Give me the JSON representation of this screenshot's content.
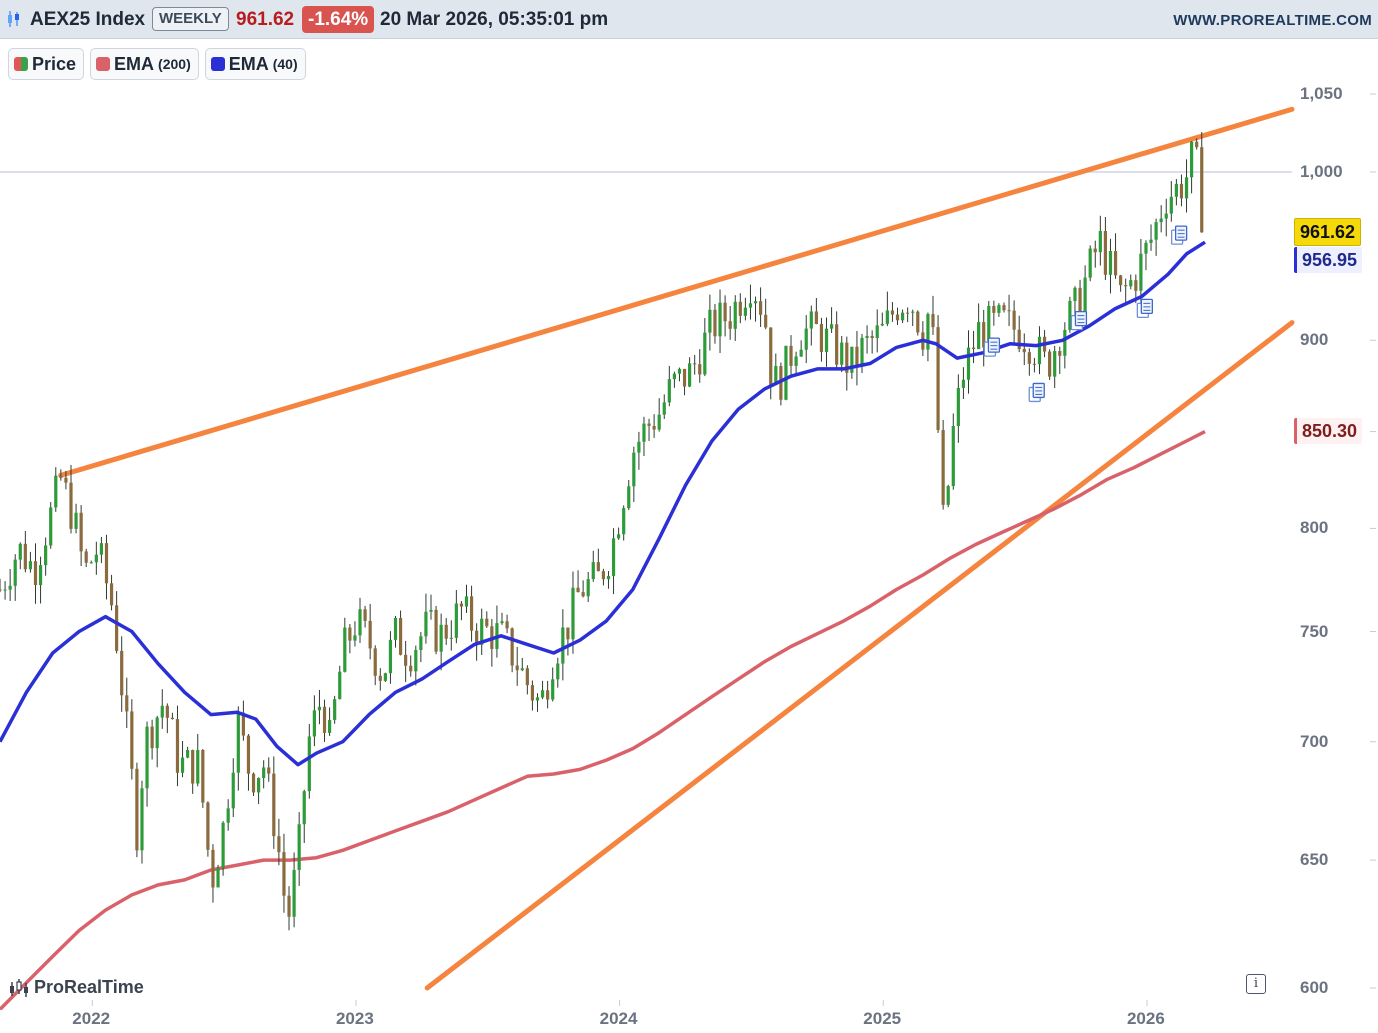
{
  "header": {
    "symbol": "AEX25 Index",
    "period": "WEEKLY",
    "last_price": "961.62",
    "change": "-1.64%",
    "datetime": "20 Mar 2026, 05:35:01 pm",
    "site": "WWW.PROREALTIME.COM",
    "colors": {
      "last": "#b91c1c",
      "change_bg": "#d9534f"
    }
  },
  "legend": {
    "price": {
      "label": "Price"
    },
    "ema200": {
      "label": "EMA",
      "param": "(200)",
      "color": "#d9626a"
    },
    "ema40": {
      "label": "EMA",
      "param": "(40)",
      "color": "#2b2fd6"
    }
  },
  "price_tags": {
    "last": {
      "text": "961.62",
      "bg": "#f5d90a",
      "fg": "#111111"
    },
    "ema40": {
      "text": "956.95",
      "bg": "#eef0ff",
      "fg": "#1f2a8c",
      "border": "#2b2fd6"
    },
    "ema200": {
      "text": "850.30",
      "bg": "#fdf1f2",
      "fg": "#7f1d1d",
      "border": "#d9626a"
    }
  },
  "brand": "ProRealTime",
  "info_icon": "i",
  "chart_data": {
    "type": "candlestick",
    "scale": "log",
    "ylim": [
      600,
      1050
    ],
    "y_ticks": [
      "1,050",
      "1,000",
      "900",
      "850",
      "800",
      "750",
      "700",
      "650",
      "600"
    ],
    "y_tick_values": [
      1050,
      1000,
      900,
      850,
      800,
      750,
      700,
      650,
      600
    ],
    "x_ticks": [
      "2022",
      "2023",
      "2024",
      "2025",
      "2026"
    ],
    "x_tick_years": [
      2022,
      2023,
      2024,
      2025,
      2026
    ],
    "x_range": [
      2021.65,
      2026.55
    ],
    "last_week": 2026.22,
    "colors": {
      "up": "#2e9b3a",
      "down": "#8b6b3d",
      "wick": "#2f3b2f",
      "trendline": "#f5843f",
      "hline": "#cfd6e6"
    },
    "horizontal_line": 1000,
    "trendlines": [
      {
        "name": "upper",
        "from": [
          2021.88,
          827
        ],
        "to": [
          2026.55,
          1040
        ]
      },
      {
        "name": "lower",
        "from": [
          2023.27,
          600
        ],
        "to": [
          2026.55,
          910
        ]
      }
    ],
    "price_path": [
      [
        2021.65,
        770
      ],
      [
        2021.72,
        790
      ],
      [
        2021.78,
        780
      ],
      [
        2021.85,
        810
      ],
      [
        2021.88,
        825
      ],
      [
        2021.93,
        805
      ],
      [
        2021.97,
        778
      ],
      [
        2022.02,
        790
      ],
      [
        2022.08,
        760
      ],
      [
        2022.13,
        705
      ],
      [
        2022.17,
        662
      ],
      [
        2022.2,
        700
      ],
      [
        2022.27,
        718
      ],
      [
        2022.33,
        690
      ],
      [
        2022.4,
        690
      ],
      [
        2022.43,
        665
      ],
      [
        2022.45,
        640
      ],
      [
        2022.5,
        665
      ],
      [
        2022.55,
        710
      ],
      [
        2022.6,
        685
      ],
      [
        2022.65,
        690
      ],
      [
        2022.7,
        660
      ],
      [
        2022.74,
        625
      ],
      [
        2022.78,
        650
      ],
      [
        2022.82,
        700
      ],
      [
        2022.87,
        720
      ],
      [
        2022.9,
        700
      ],
      [
        2022.95,
        740
      ],
      [
        2023.0,
        755
      ],
      [
        2023.05,
        745
      ],
      [
        2023.1,
        730
      ],
      [
        2023.15,
        748
      ],
      [
        2023.2,
        740
      ],
      [
        2023.27,
        752
      ],
      [
        2023.32,
        748
      ],
      [
        2023.4,
        760
      ],
      [
        2023.45,
        752
      ],
      [
        2023.55,
        748
      ],
      [
        2023.6,
        738
      ],
      [
        2023.65,
        726
      ],
      [
        2023.7,
        716
      ],
      [
        2023.75,
        740
      ],
      [
        2023.8,
        752
      ],
      [
        2023.85,
        770
      ],
      [
        2023.92,
        775
      ],
      [
        2023.97,
        790
      ],
      [
        2024.05,
        840
      ],
      [
        2024.1,
        852
      ],
      [
        2024.15,
        860
      ],
      [
        2024.2,
        875
      ],
      [
        2024.27,
        882
      ],
      [
        2024.35,
        908
      ],
      [
        2024.42,
        915
      ],
      [
        2024.5,
        935
      ],
      [
        2024.55,
        915
      ],
      [
        2024.58,
        875
      ],
      [
        2024.62,
        880
      ],
      [
        2024.68,
        905
      ],
      [
        2024.75,
        905
      ],
      [
        2024.82,
        895
      ],
      [
        2024.88,
        885
      ],
      [
        2024.92,
        895
      ],
      [
        2025.0,
        905
      ],
      [
        2025.05,
        920
      ],
      [
        2025.1,
        925
      ],
      [
        2025.15,
        905
      ],
      [
        2025.18,
        920
      ],
      [
        2025.2,
        870
      ],
      [
        2025.23,
        795
      ],
      [
        2025.26,
        845
      ],
      [
        2025.3,
        880
      ],
      [
        2025.36,
        905
      ],
      [
        2025.45,
        910
      ],
      [
        2025.52,
        905
      ],
      [
        2025.58,
        895
      ],
      [
        2025.62,
        885
      ],
      [
        2025.68,
        908
      ],
      [
        2025.72,
        915
      ],
      [
        2025.78,
        940
      ],
      [
        2025.82,
        958
      ],
      [
        2025.85,
        945
      ],
      [
        2025.9,
        925
      ],
      [
        2025.95,
        935
      ],
      [
        2026.02,
        960
      ],
      [
        2026.07,
        985
      ],
      [
        2026.12,
        990
      ],
      [
        2026.16,
        1000
      ],
      [
        2026.18,
        1015
      ],
      [
        2026.2,
        985
      ],
      [
        2026.22,
        962
      ]
    ],
    "ema40_path": [
      [
        2021.65,
        700
      ],
      [
        2021.75,
        722
      ],
      [
        2021.85,
        740
      ],
      [
        2021.95,
        750
      ],
      [
        2022.05,
        757
      ],
      [
        2022.15,
        750
      ],
      [
        2022.25,
        735
      ],
      [
        2022.35,
        722
      ],
      [
        2022.45,
        712
      ],
      [
        2022.55,
        713
      ],
      [
        2022.62,
        710
      ],
      [
        2022.7,
        698
      ],
      [
        2022.78,
        690
      ],
      [
        2022.85,
        695
      ],
      [
        2022.95,
        700
      ],
      [
        2023.05,
        712
      ],
      [
        2023.15,
        722
      ],
      [
        2023.25,
        728
      ],
      [
        2023.35,
        736
      ],
      [
        2023.45,
        744
      ],
      [
        2023.55,
        748
      ],
      [
        2023.65,
        744
      ],
      [
        2023.75,
        740
      ],
      [
        2023.85,
        746
      ],
      [
        2023.95,
        755
      ],
      [
        2024.05,
        770
      ],
      [
        2024.15,
        795
      ],
      [
        2024.25,
        822
      ],
      [
        2024.35,
        845
      ],
      [
        2024.45,
        862
      ],
      [
        2024.55,
        873
      ],
      [
        2024.65,
        880
      ],
      [
        2024.75,
        884
      ],
      [
        2024.85,
        884
      ],
      [
        2024.95,
        887
      ],
      [
        2025.05,
        896
      ],
      [
        2025.15,
        900
      ],
      [
        2025.2,
        898
      ],
      [
        2025.28,
        890
      ],
      [
        2025.38,
        893
      ],
      [
        2025.48,
        898
      ],
      [
        2025.58,
        897
      ],
      [
        2025.68,
        900
      ],
      [
        2025.78,
        908
      ],
      [
        2025.88,
        918
      ],
      [
        2025.98,
        925
      ],
      [
        2026.08,
        938
      ],
      [
        2026.15,
        950
      ],
      [
        2026.22,
        957
      ]
    ],
    "ema200_path": [
      [
        2021.65,
        592
      ],
      [
        2021.75,
        602
      ],
      [
        2021.85,
        612
      ],
      [
        2021.95,
        622
      ],
      [
        2022.05,
        630
      ],
      [
        2022.15,
        636
      ],
      [
        2022.25,
        640
      ],
      [
        2022.35,
        642
      ],
      [
        2022.45,
        646
      ],
      [
        2022.55,
        648
      ],
      [
        2022.65,
        650
      ],
      [
        2022.75,
        650
      ],
      [
        2022.85,
        651
      ],
      [
        2022.95,
        654
      ],
      [
        2023.05,
        658
      ],
      [
        2023.15,
        662
      ],
      [
        2023.25,
        666
      ],
      [
        2023.35,
        670
      ],
      [
        2023.45,
        675
      ],
      [
        2023.55,
        680
      ],
      [
        2023.65,
        685
      ],
      [
        2023.75,
        686
      ],
      [
        2023.85,
        688
      ],
      [
        2023.95,
        692
      ],
      [
        2024.05,
        697
      ],
      [
        2024.15,
        704
      ],
      [
        2024.25,
        712
      ],
      [
        2024.35,
        720
      ],
      [
        2024.45,
        728
      ],
      [
        2024.55,
        736
      ],
      [
        2024.65,
        743
      ],
      [
        2024.75,
        749
      ],
      [
        2024.85,
        755
      ],
      [
        2024.95,
        762
      ],
      [
        2025.05,
        770
      ],
      [
        2025.15,
        777
      ],
      [
        2025.25,
        785
      ],
      [
        2025.35,
        792
      ],
      [
        2025.45,
        798
      ],
      [
        2025.55,
        804
      ],
      [
        2025.65,
        810
      ],
      [
        2025.75,
        817
      ],
      [
        2025.85,
        825
      ],
      [
        2025.95,
        831
      ],
      [
        2026.05,
        838
      ],
      [
        2026.15,
        845
      ],
      [
        2026.22,
        850
      ]
    ],
    "news_markers": [
      [
        2025.41,
        895
      ],
      [
        2025.58,
        870
      ],
      [
        2025.74,
        910
      ],
      [
        2025.99,
        917
      ],
      [
        2026.12,
        960
      ]
    ]
  }
}
